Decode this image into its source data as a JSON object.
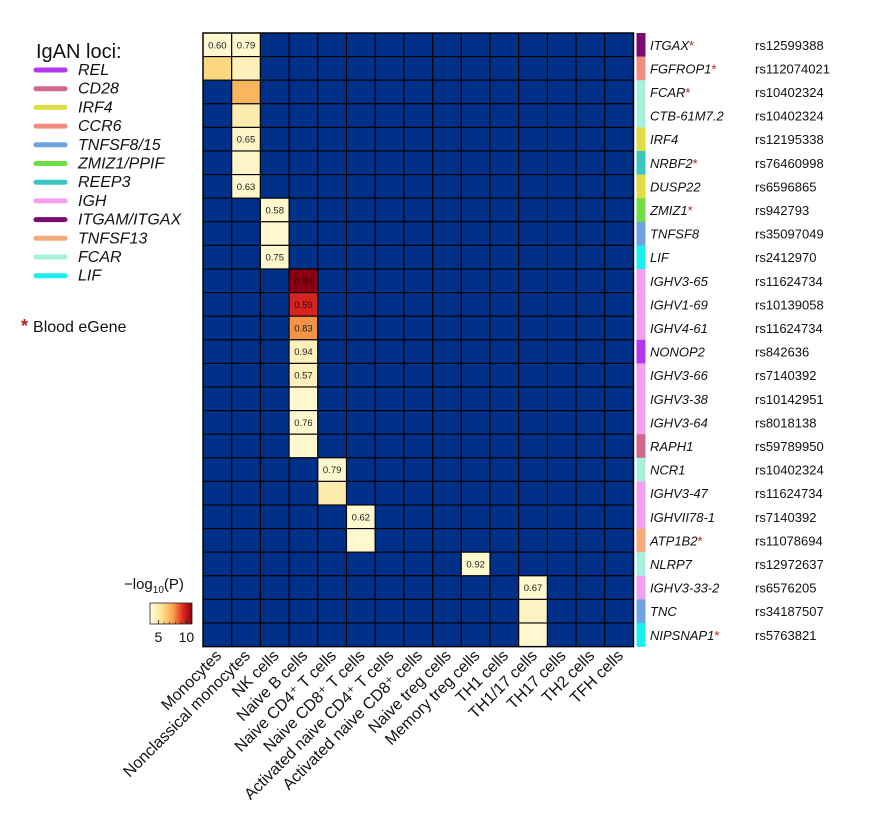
{
  "legend": {
    "title": "IgAN loci:",
    "loci": [
      {
        "label": "REL",
        "color": "#b537f2"
      },
      {
        "label": "CD28",
        "color": "#d1688c"
      },
      {
        "label": "IRF4",
        "color": "#dede45"
      },
      {
        "label": "CCR6",
        "color": "#f08c82"
      },
      {
        "label": "TNFSF8/15",
        "color": "#6fa3e0"
      },
      {
        "label": "ZMIZ1/PPIF",
        "color": "#6fe043"
      },
      {
        "label": "REEP3",
        "color": "#38c6c3"
      },
      {
        "label": "IGH",
        "color": "#f3a0ee"
      },
      {
        "label": "ITGAM/ITGAX",
        "color": "#7a0a70"
      },
      {
        "label": "TNFSF13",
        "color": "#f4ab7c"
      },
      {
        "label": "FCAR",
        "color": "#a6f0de"
      },
      {
        "label": "LIF",
        "color": "#1aeef0"
      }
    ],
    "egene_marker": "*",
    "egene_label": "Blood eGene"
  },
  "colorbar": {
    "title_prefix": "−log",
    "title_sub": "10",
    "title_suffix": "(P)",
    "tick_labels": [
      "5",
      "10"
    ],
    "range": [
      3.5,
      11
    ]
  },
  "colors": {
    "background_cell": "#003087",
    "grid_line": "#000000",
    "star": "#b22222",
    "scale_low": "#fffde2",
    "scale_high": "#8b0010"
  },
  "chart_data": {
    "type": "heatmap",
    "columns": [
      "Monocytes",
      "Nonclassical monocytes",
      "NK cells",
      "Naive B cells",
      "Naive CD4⁺ T cells",
      "Naive CD8⁺ T cells",
      "Activated naive CD4⁺ T cells",
      "Activated naive CD8⁺ cells",
      "Naive treg cells",
      "Memory treg cells",
      "TH1 cells",
      "TH1/17 cells",
      "TH17 cells",
      "TH2 cells",
      "TFH cells"
    ],
    "rows": [
      {
        "gene": "ITGAX",
        "egene": true,
        "snp": "rs12599388",
        "locus_color": "#7a0a70"
      },
      {
        "gene": "FGFROP1",
        "egene": true,
        "snp": "rs112074021",
        "locus_color": "#f08c82"
      },
      {
        "gene": "FCAR",
        "egene": true,
        "snp": "rs10402324",
        "locus_color": "#a6f0de"
      },
      {
        "gene": "CTB-61M7.2",
        "egene": false,
        "snp": "rs10402324",
        "locus_color": "#a6f0de"
      },
      {
        "gene": "IRF4",
        "egene": false,
        "snp": "rs12195338",
        "locus_color": "#dede45"
      },
      {
        "gene": "NRBF2",
        "egene": true,
        "snp": "rs76460998",
        "locus_color": "#38c6c3"
      },
      {
        "gene": "DUSP22",
        "egene": false,
        "snp": "rs6596865",
        "locus_color": "#dede45"
      },
      {
        "gene": "ZMIZ1",
        "egene": true,
        "snp": "rs942793",
        "locus_color": "#6fe043"
      },
      {
        "gene": "TNFSF8",
        "egene": false,
        "snp": "rs35097049",
        "locus_color": "#6fa3e0"
      },
      {
        "gene": "LIF",
        "egene": false,
        "snp": "rs2412970",
        "locus_color": "#1aeef0"
      },
      {
        "gene": "IGHV3-65",
        "egene": false,
        "snp": "rs11624734",
        "locus_color": "#f3a0ee"
      },
      {
        "gene": "IGHV1-69",
        "egene": false,
        "snp": "rs10139058",
        "locus_color": "#f3a0ee"
      },
      {
        "gene": "IGHV4-61",
        "egene": false,
        "snp": "rs11624734",
        "locus_color": "#f3a0ee"
      },
      {
        "gene": "NONOP2",
        "egene": false,
        "snp": "rs842636",
        "locus_color": "#b537f2"
      },
      {
        "gene": "IGHV3-66",
        "egene": false,
        "snp": "rs7140392",
        "locus_color": "#f3a0ee"
      },
      {
        "gene": "IGHV3-38",
        "egene": false,
        "snp": "rs10142951",
        "locus_color": "#f3a0ee"
      },
      {
        "gene": "IGHV3-64",
        "egene": false,
        "snp": "rs8018138",
        "locus_color": "#f3a0ee"
      },
      {
        "gene": "RAPH1",
        "egene": false,
        "snp": "rs59789950",
        "locus_color": "#d1688c"
      },
      {
        "gene": "NCR1",
        "egene": false,
        "snp": "rs10402324",
        "locus_color": "#a6f0de"
      },
      {
        "gene": "IGHV3-47",
        "egene": false,
        "snp": "rs11624734",
        "locus_color": "#f3a0ee"
      },
      {
        "gene": "IGHVII78-1",
        "egene": false,
        "snp": "rs7140392",
        "locus_color": "#f3a0ee"
      },
      {
        "gene": "ATP1B2",
        "egene": true,
        "snp": "rs11078694",
        "locus_color": "#f4ab7c"
      },
      {
        "gene": "NLRP7",
        "egene": false,
        "snp": "rs12972637",
        "locus_color": "#a6f0de"
      },
      {
        "gene": "IGHV3-33-2",
        "egene": false,
        "snp": "rs6576205",
        "locus_color": "#f3a0ee"
      },
      {
        "gene": "TNC",
        "egene": false,
        "snp": "rs34187507",
        "locus_color": "#6fa3e0"
      },
      {
        "gene": "NIPSNAP1",
        "egene": true,
        "snp": "rs5763821",
        "locus_color": "#1aeef0"
      }
    ],
    "cells": [
      {
        "row": 0,
        "col": 0,
        "neglog10p": 4.0,
        "label": "0.60"
      },
      {
        "row": 0,
        "col": 1,
        "neglog10p": 4.0,
        "label": "0.79"
      },
      {
        "row": 1,
        "col": 0,
        "neglog10p": 6.0,
        "label": ""
      },
      {
        "row": 1,
        "col": 1,
        "neglog10p": 4.5,
        "label": ""
      },
      {
        "row": 2,
        "col": 1,
        "neglog10p": 7.0,
        "label": ""
      },
      {
        "row": 3,
        "col": 1,
        "neglog10p": 4.8,
        "label": ""
      },
      {
        "row": 4,
        "col": 1,
        "neglog10p": 4.2,
        "label": "0.65"
      },
      {
        "row": 5,
        "col": 1,
        "neglog10p": 4.2,
        "label": ""
      },
      {
        "row": 6,
        "col": 1,
        "neglog10p": 4.0,
        "label": "0.63"
      },
      {
        "row": 7,
        "col": 2,
        "neglog10p": 4.0,
        "label": "0.58"
      },
      {
        "row": 8,
        "col": 2,
        "neglog10p": 4.0,
        "label": ""
      },
      {
        "row": 9,
        "col": 2,
        "neglog10p": 4.0,
        "label": "0.75"
      },
      {
        "row": 10,
        "col": 3,
        "neglog10p": 11.0,
        "label": "0.68"
      },
      {
        "row": 11,
        "col": 3,
        "neglog10p": 9.6,
        "label": "0.59"
      },
      {
        "row": 12,
        "col": 3,
        "neglog10p": 7.8,
        "label": "0.83"
      },
      {
        "row": 13,
        "col": 3,
        "neglog10p": 4.5,
        "label": "0.94"
      },
      {
        "row": 14,
        "col": 3,
        "neglog10p": 4.5,
        "label": "0.57"
      },
      {
        "row": 15,
        "col": 3,
        "neglog10p": 4.0,
        "label": ""
      },
      {
        "row": 16,
        "col": 3,
        "neglog10p": 4.0,
        "label": "0.76"
      },
      {
        "row": 17,
        "col": 3,
        "neglog10p": 4.0,
        "label": ""
      },
      {
        "row": 18,
        "col": 4,
        "neglog10p": 4.0,
        "label": "0.79"
      },
      {
        "row": 19,
        "col": 4,
        "neglog10p": 4.8,
        "label": ""
      },
      {
        "row": 20,
        "col": 5,
        "neglog10p": 4.0,
        "label": "0.62"
      },
      {
        "row": 21,
        "col": 5,
        "neglog10p": 4.0,
        "label": ""
      },
      {
        "row": 22,
        "col": 9,
        "neglog10p": 4.0,
        "label": "0.92"
      },
      {
        "row": 23,
        "col": 11,
        "neglog10p": 4.0,
        "label": "0.67"
      },
      {
        "row": 24,
        "col": 11,
        "neglog10p": 4.3,
        "label": ""
      },
      {
        "row": 25,
        "col": 11,
        "neglog10p": 4.0,
        "label": ""
      }
    ]
  }
}
